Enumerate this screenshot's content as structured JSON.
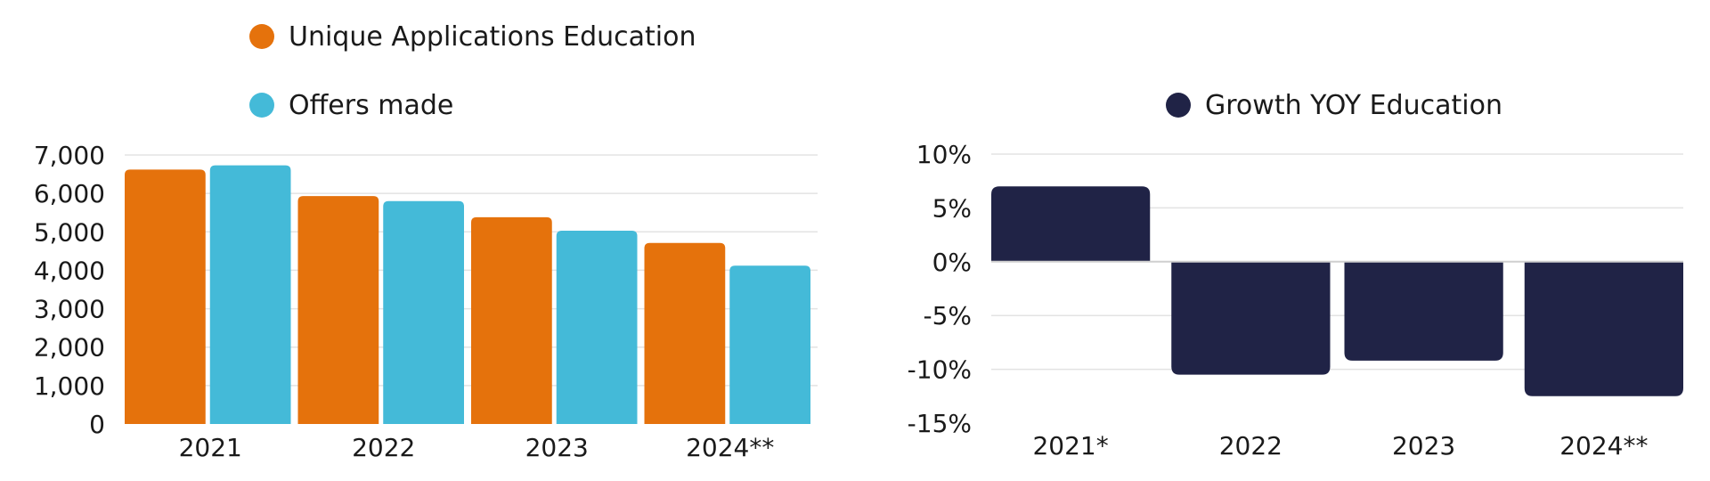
{
  "colors": {
    "applications": "#e5720c",
    "offers": "#44bad8",
    "growth": "#202346",
    "grid": "#e3e3e3",
    "zero_line": "#cfcfcf",
    "text": "#1a1a1a"
  },
  "chart_data": [
    {
      "type": "bar",
      "categories": [
        "2021",
        "2022",
        "2023",
        "2024**"
      ],
      "series": [
        {
          "name": "Unique Applications Education",
          "color": "#e5720c",
          "values": [
            6620,
            5930,
            5380,
            4710
          ]
        },
        {
          "name": "Offers made",
          "color": "#44bad8",
          "values": [
            6730,
            5800,
            5030,
            4120
          ]
        }
      ],
      "ylim": [
        0,
        7000
      ],
      "yticks": [
        "0",
        "1,000",
        "2,000",
        "3,000",
        "4,000",
        "5,000",
        "6,000",
        "7,000"
      ],
      "grid": true,
      "legend": "top-left"
    },
    {
      "type": "bar",
      "categories": [
        "2021*",
        "2022",
        "2023",
        "2024**"
      ],
      "series": [
        {
          "name": "Growth YOY Education",
          "color": "#202346",
          "values": [
            7,
            -10.5,
            -9.2,
            -12.5
          ]
        }
      ],
      "ylim": [
        -15,
        10
      ],
      "yticks": [
        "-15%",
        "-10%",
        "-5%",
        "0%",
        "5%",
        "10%"
      ],
      "grid": true,
      "legend": "top-center"
    }
  ]
}
